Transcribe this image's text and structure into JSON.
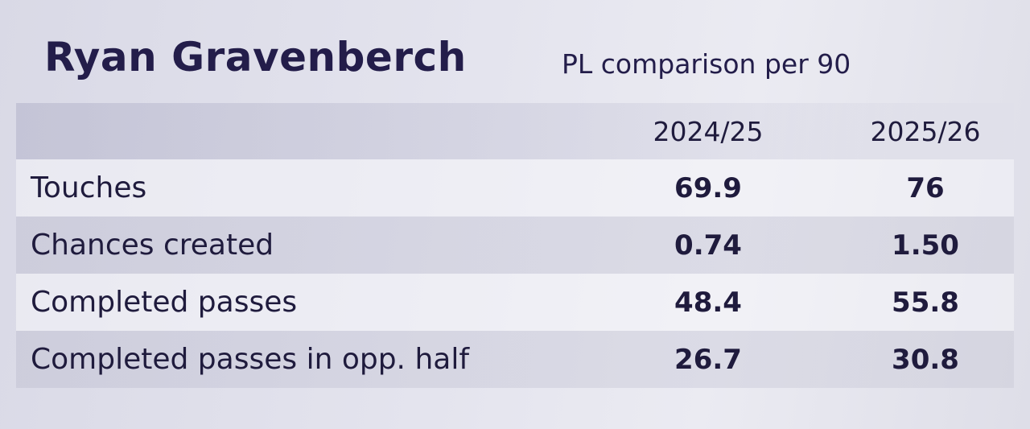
{
  "header": {
    "title": "Ryan Gravenberch",
    "subtitle": "PL comparison per 90"
  },
  "table": {
    "columns": [
      "2024/25",
      "2025/26"
    ],
    "rows": [
      [
        "Touches",
        "69.9",
        "76"
      ],
      [
        "Chances created",
        "0.74",
        "1.50"
      ],
      [
        "Completed passes",
        "48.4",
        "55.8"
      ],
      [
        "Completed passes in opp. half",
        "26.7",
        "30.8"
      ]
    ]
  }
}
